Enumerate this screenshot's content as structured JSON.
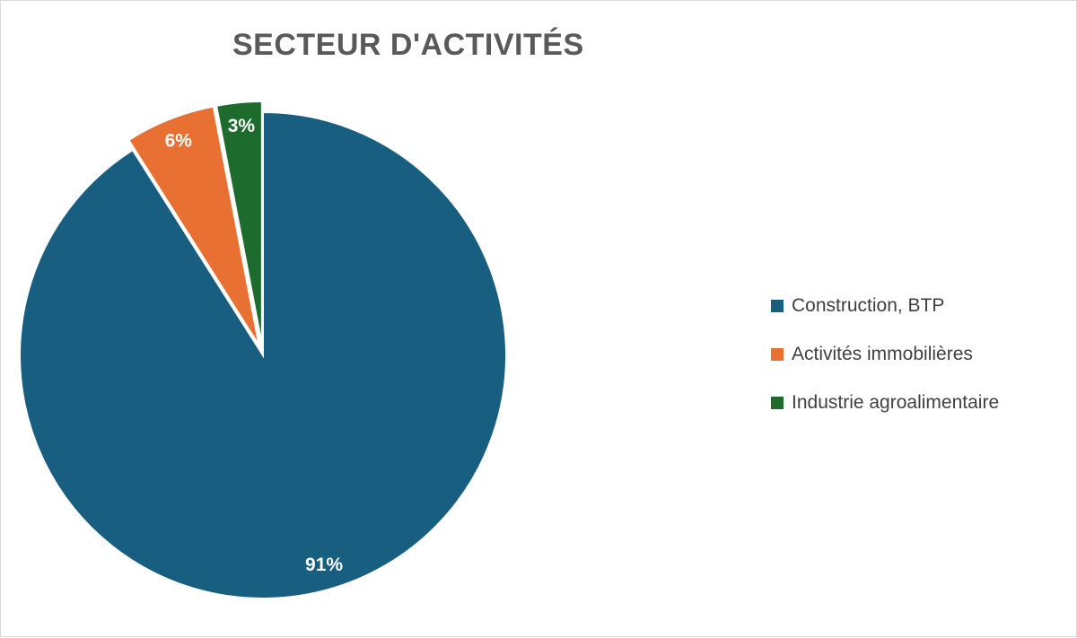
{
  "chart_data": {
    "type": "pie",
    "title": "SECTEUR D'ACTIVITÉS",
    "categories": [
      "Construction, BTP",
      "Activités immobilières",
      "Industrie agroalimentaire"
    ],
    "values": [
      91,
      6,
      3
    ],
    "labels": [
      "91%",
      "6%",
      "3%"
    ],
    "colors": [
      "#175e80",
      "#e87032",
      "#1e6b2e"
    ],
    "exploded": [
      false,
      true,
      true
    ],
    "legend": "right"
  }
}
